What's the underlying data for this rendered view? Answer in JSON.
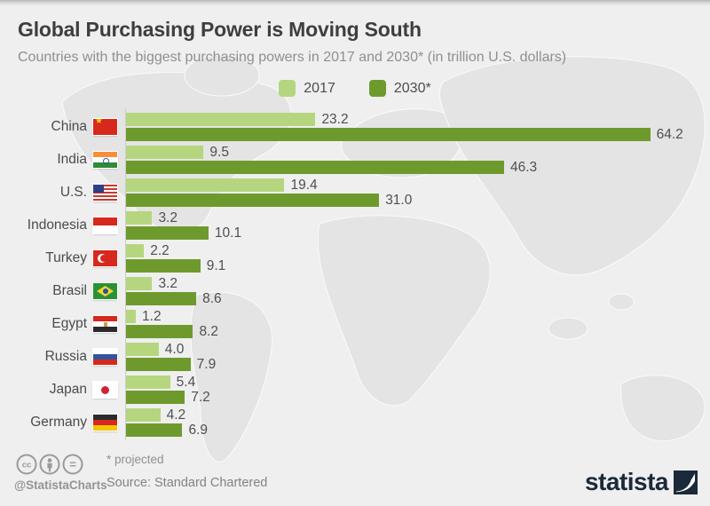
{
  "header": {
    "title": "Global Purchasing Power is Moving South",
    "subtitle": "Countries with the biggest purchasing powers in 2017 and 2030* (in trillion U.S. dollars)"
  },
  "legend": [
    {
      "label": "2017",
      "color": "#b5d67f"
    },
    {
      "label": "2030*",
      "color": "#6e9a2d"
    }
  ],
  "chart_data": {
    "type": "bar",
    "orientation": "horizontal",
    "title": "Global Purchasing Power is Moving South",
    "subtitle": "Countries with the biggest purchasing powers in 2017 and 2030* (in trillion U.S. dollars)",
    "unit": "trillion U.S. dollars",
    "xlim": [
      0,
      70
    ],
    "grid": false,
    "legend_position": "top",
    "categories": [
      "China",
      "India",
      "U.S.",
      "Indonesia",
      "Turkey",
      "Brasil",
      "Egypt",
      "Russia",
      "Japan",
      "Germany"
    ],
    "flags": [
      "flag-china",
      "flag-india",
      "flag-usa",
      "flag-indonesia",
      "flag-turkey",
      "flag-brasil",
      "flag-egypt",
      "flag-russia",
      "flag-japan",
      "flag-germany"
    ],
    "series": [
      {
        "name": "2017",
        "color": "#b5d67f",
        "values": [
          23.2,
          9.5,
          19.4,
          3.2,
          2.2,
          3.2,
          1.2,
          4.0,
          5.4,
          4.2
        ],
        "labels": [
          "23.2",
          "9.5",
          "19.4",
          "3.2",
          "2.2",
          "3.2",
          "1.2",
          "4.0",
          "5.4",
          "4.2"
        ]
      },
      {
        "name": "2030*",
        "color": "#6e9a2d",
        "values": [
          64.2,
          46.3,
          31.0,
          10.1,
          9.1,
          8.6,
          8.2,
          7.9,
          7.2,
          6.9
        ],
        "labels": [
          "64.2",
          "46.3",
          "31.0",
          "10.1",
          "9.1",
          "8.6",
          "8.2",
          "7.9",
          "7.2",
          "6.9"
        ]
      }
    ]
  },
  "footer": {
    "license_icons": [
      "cc-icon",
      "attribution-icon",
      "equal-icon"
    ],
    "handle": "@StatistaCharts",
    "note": "* projected",
    "source": "Source: Standard Chartered",
    "brand": "statista"
  },
  "colors": {
    "background": "#efefef",
    "map_land": "#e4e4e4",
    "brand_navy": "#1b2a3a",
    "light_green": "#b5d67f",
    "dark_green": "#6e9a2d"
  }
}
